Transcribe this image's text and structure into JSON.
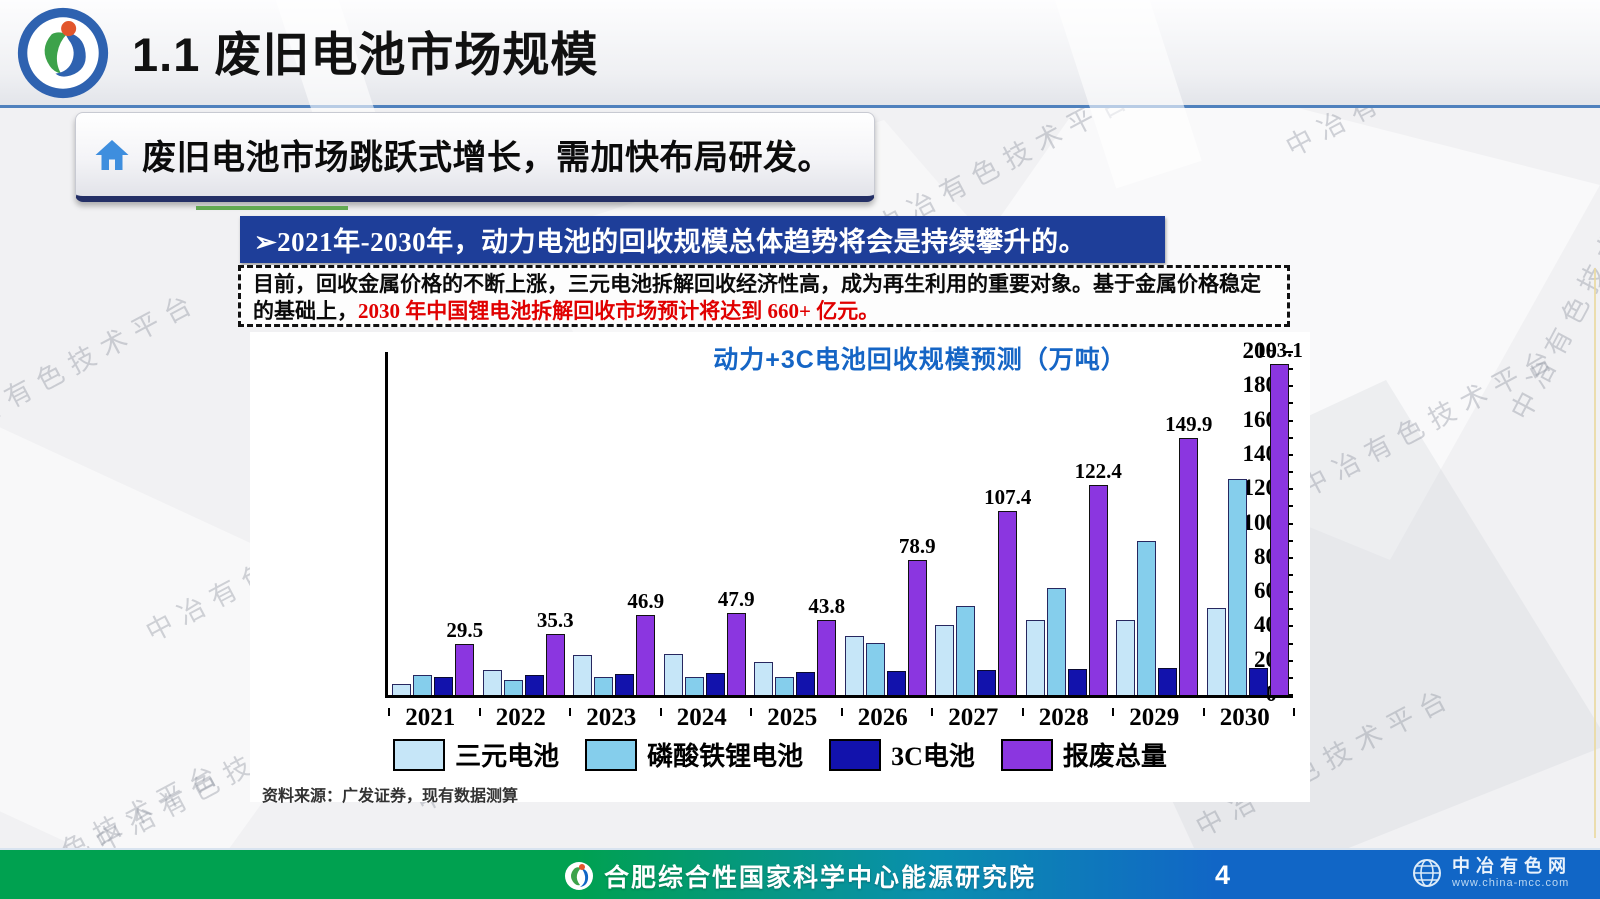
{
  "header": {
    "title": "1.1 废旧电池市场规模"
  },
  "headline": {
    "text": "废旧电池市场跳跃式增长，需加快布局研发。"
  },
  "banner": {
    "text": "➢2021年-2030年，动力电池的回收规模总体趋势将会是持续攀升的。"
  },
  "note": {
    "text_black": "目前，回收金属价格的不断上涨，三元电池拆解回收经济性高，成为再生利用的重要对象。基于金属价格稳定的基础上，",
    "text_red": "2030 年中国锂电池拆解回收市场预计将达到 660+ 亿元。"
  },
  "chart_data": {
    "type": "bar",
    "title": "动力+3C电池回收规模预测（万吨）",
    "title_color": "#1565c5",
    "categories": [
      "2021",
      "2022",
      "2023",
      "2024",
      "2025",
      "2026",
      "2027",
      "2028",
      "2029",
      "2030"
    ],
    "series": [
      {
        "name": "三元电池",
        "color": "#c6e6f8",
        "border": "#27275f",
        "values": [
          6.5,
          14.5,
          23.5,
          24,
          19.5,
          34.5,
          41,
          43.5,
          44,
          51
        ]
      },
      {
        "name": "磷酸铁锂电池",
        "color": "#85ceec",
        "border": "#27275f",
        "values": [
          11.5,
          9,
          10.5,
          10.5,
          10.5,
          30.5,
          52,
          62.5,
          90,
          126
        ]
      },
      {
        "name": "3C电池",
        "color": "#1212ac",
        "border": "#0a0a30",
        "values": [
          10.5,
          11.5,
          12,
          13,
          13.5,
          14,
          14.5,
          15,
          15.5,
          16
        ]
      },
      {
        "name": "报废总量",
        "color": "#8b36e0",
        "border": "#111",
        "values": [
          29.5,
          35.3,
          46.9,
          47.9,
          43.8,
          78.9,
          107.4,
          122.4,
          149.9,
          193.1
        ],
        "labeled": true
      }
    ],
    "ylim": [
      0,
      200
    ],
    "ytick_step": 20,
    "grid": false,
    "legend_position": "bottom",
    "value_labels_on": "报废总量"
  },
  "source": {
    "text": "资料来源：广发证券，现有数据测算"
  },
  "footer": {
    "org": "合肥综合性国家科学中心能源研究院",
    "page": "4",
    "site_name": "中冶有色网",
    "site_url": "www.china-mcc.com"
  },
  "watermark": {
    "text": "中冶有色技术平台"
  }
}
